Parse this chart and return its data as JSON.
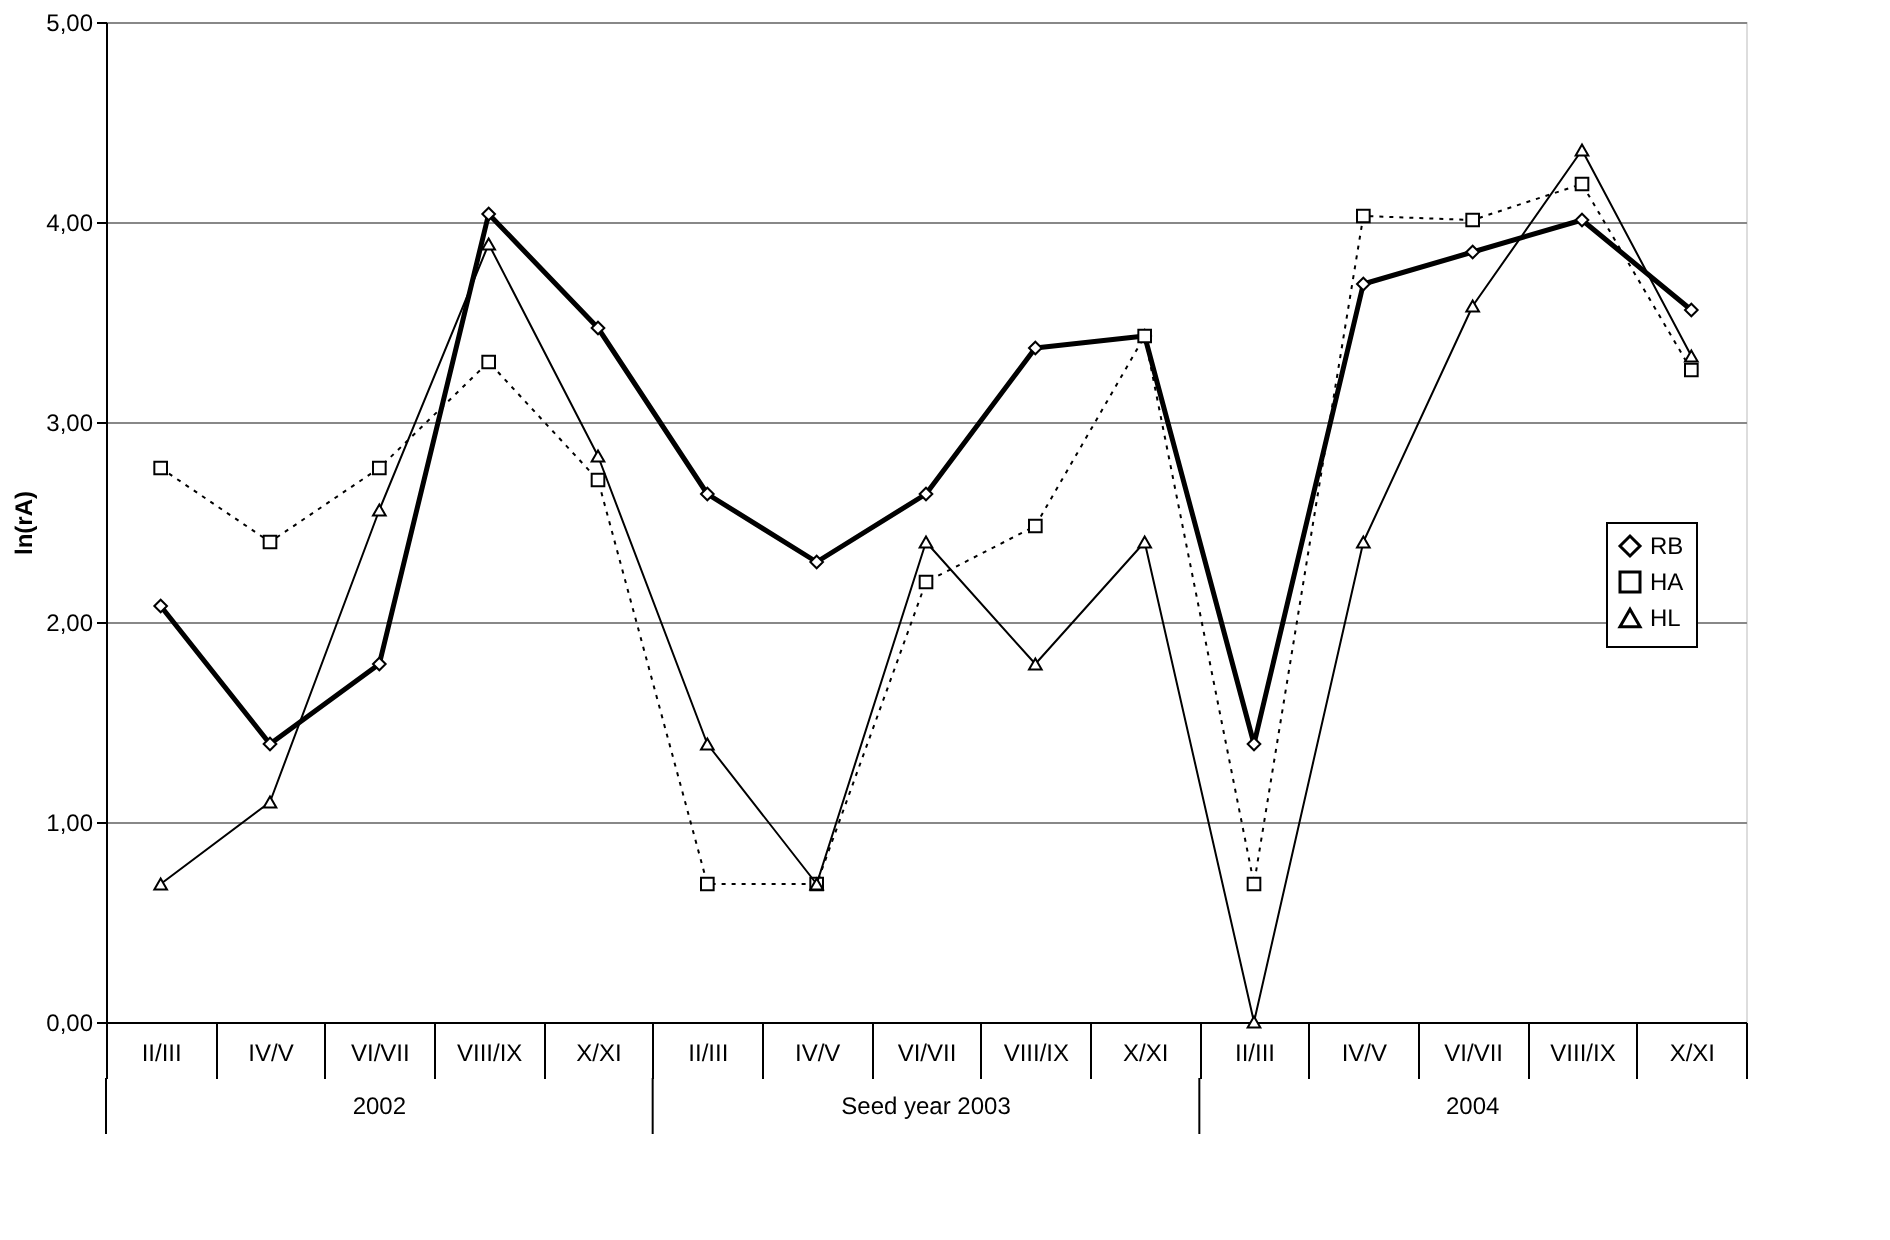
{
  "chart_data": {
    "type": "line",
    "ylabel": "ln(rA)",
    "categories": [
      "II/III",
      "IV/V",
      "VI/VII",
      "VIII/IX",
      "X/XI",
      "II/III",
      "IV/V",
      "VI/VII",
      "VIII/IX",
      "X/XI",
      "II/III",
      "IV/V",
      "VI/VII",
      "VIII/IX",
      "X/XI"
    ],
    "annotations": [
      "2002",
      "Seed year 2003",
      "2004"
    ],
    "series": [
      {
        "name": "RB",
        "color": "#000000",
        "marker": "diamond",
        "line_style": "solid",
        "values": [
          2.08,
          1.39,
          1.79,
          4.04,
          3.47,
          2.64,
          2.3,
          2.64,
          3.37,
          3.43,
          1.39,
          3.69,
          3.85,
          4.01,
          3.56
        ]
      },
      {
        "name": "HA",
        "color": "#000000",
        "marker": "square",
        "line_style": "dotted",
        "values": [
          2.77,
          2.4,
          2.77,
          3.3,
          2.71,
          0.69,
          0.69,
          2.2,
          2.48,
          3.43,
          0.69,
          4.03,
          4.01,
          4.19,
          3.26
        ]
      },
      {
        "name": "HL",
        "color": "#000000",
        "marker": "triangle",
        "line_style": "solid",
        "values": [
          0.69,
          1.1,
          2.56,
          3.89,
          2.83,
          1.39,
          0.69,
          2.4,
          1.79,
          2.4,
          0.0,
          2.4,
          3.58,
          4.36,
          3.33
        ]
      }
    ],
    "ylim": [
      0,
      5
    ],
    "yticks": [
      {
        "value": 0,
        "label": "0,00"
      },
      {
        "value": 1,
        "label": "1,00"
      },
      {
        "value": 2,
        "label": "2,00"
      },
      {
        "value": 3,
        "label": "3,00"
      },
      {
        "value": 4,
        "label": "4,00"
      },
      {
        "value": 5,
        "label": "5,00"
      }
    ],
    "grid": "y",
    "legend": "right"
  }
}
